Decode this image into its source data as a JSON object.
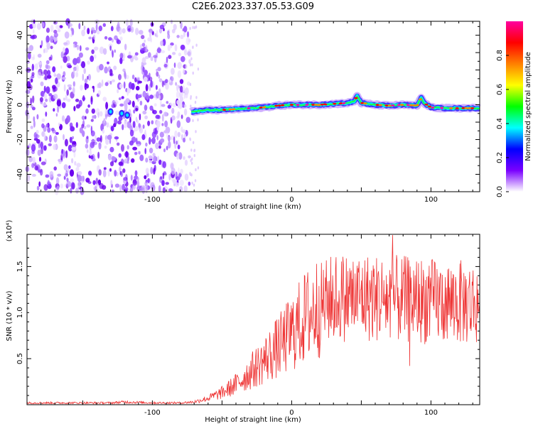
{
  "title": "C2E6.2023.337.05.53.G09",
  "chart_data": [
    {
      "type": "heatmap",
      "xlabel": "Height of straight line (km)",
      "ylabel": "Frequency (Hz)",
      "xlim": [
        -190,
        135
      ],
      "ylim": [
        -50,
        48
      ],
      "xticks": [
        -100,
        0,
        100
      ],
      "yticks": [
        -40,
        -20,
        0,
        20,
        40
      ],
      "signal_track": {
        "x": [
          -72,
          -65,
          -60,
          -50,
          -40,
          -30,
          -20,
          -10,
          0,
          10,
          20,
          30,
          40,
          45,
          47,
          50,
          60,
          70,
          80,
          90,
          93,
          95,
          100,
          110,
          120,
          130,
          135
        ],
        "freq": [
          -4,
          -3.5,
          -3,
          -3,
          -2.5,
          -2,
          -1.5,
          -0.5,
          0,
          0,
          0,
          0.5,
          1,
          2,
          5,
          1,
          0,
          -0.5,
          0,
          -0.5,
          4,
          1,
          -1.5,
          -2,
          -2,
          -2,
          -2
        ]
      },
      "noise_region": {
        "x_from": -190,
        "x_to": -73,
        "freq_range": [
          -50,
          48
        ]
      },
      "colorbar": {
        "label": "Normalized spectral amplitude",
        "range": [
          0.0,
          1.0
        ],
        "ticks": [
          0.0,
          0.2,
          0.4,
          0.6,
          0.8
        ],
        "colormap": [
          "#ffffff",
          "#7a00ff",
          "#0000ff",
          "#00ffff",
          "#00ff00",
          "#ffff00",
          "#ff8000",
          "#ff0000",
          "#ff00a0"
        ]
      }
    },
    {
      "type": "line",
      "xlabel": "Height of straight line (km)",
      "ylabel": "SNR (10 * v/v)",
      "y_multiplier": "(x10⁴)",
      "xlim": [
        -190,
        135
      ],
      "ylim": [
        0,
        1.85
      ],
      "xticks": [
        -100,
        0,
        100
      ],
      "yticks": [
        0.5,
        1.0,
        1.5
      ],
      "color": "#ee3333",
      "series": [
        {
          "x": [
            -190,
            -160,
            -130,
            -120,
            -100,
            -80,
            -70,
            -60,
            -50,
            -40,
            -30,
            -20,
            -10,
            0,
            10,
            20,
            30,
            40,
            50,
            60,
            70,
            80,
            90,
            100,
            110,
            120,
            130,
            135
          ],
          "y": [
            0.02,
            0.02,
            0.02,
            0.03,
            0.02,
            0.02,
            0.03,
            0.07,
            0.13,
            0.22,
            0.35,
            0.48,
            0.62,
            0.78,
            0.95,
            1.08,
            1.16,
            1.17,
            1.17,
            1.16,
            1.15,
            1.14,
            1.14,
            1.12,
            1.12,
            1.11,
            1.1,
            1.1
          ]
        }
      ]
    }
  ]
}
